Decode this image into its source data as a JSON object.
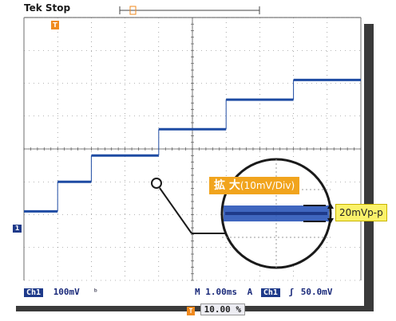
{
  "status": {
    "brand": "Tek",
    "state": "Stop"
  },
  "markers": {
    "trigger_glyph": "T",
    "channel_glyph": "1"
  },
  "colors": {
    "trace": "#1e4ba3",
    "grid": "#6e6e6e",
    "callout": "#f1a41d",
    "measure": "#fbf26a",
    "shadow": "#3a3a3a"
  },
  "waveform": {
    "time_per_div_ms": 1.0,
    "volts_per_div_mV": 100,
    "levels_div": [
      -1.9,
      -1.0,
      -0.2,
      0.6,
      1.5,
      2.1
    ],
    "step_times_div": [
      -4.0,
      -3.0,
      -1.0,
      1.0,
      3.0
    ]
  },
  "zoom": {
    "title": "拡 大",
    "detail": "(10mV/Div)",
    "amplitude": "20mVp-p"
  },
  "bottom": {
    "channel": "Ch1",
    "volts_div": "100mV",
    "bw_icon": "bandwidth-limit-icon",
    "timebase": "M 1.00ms",
    "acq": "A",
    "trig_source": "Ch1",
    "trig_slope_icon": "rising-edge-icon",
    "trig_level": "50.0mV",
    "trig_position": "10.00 %"
  }
}
